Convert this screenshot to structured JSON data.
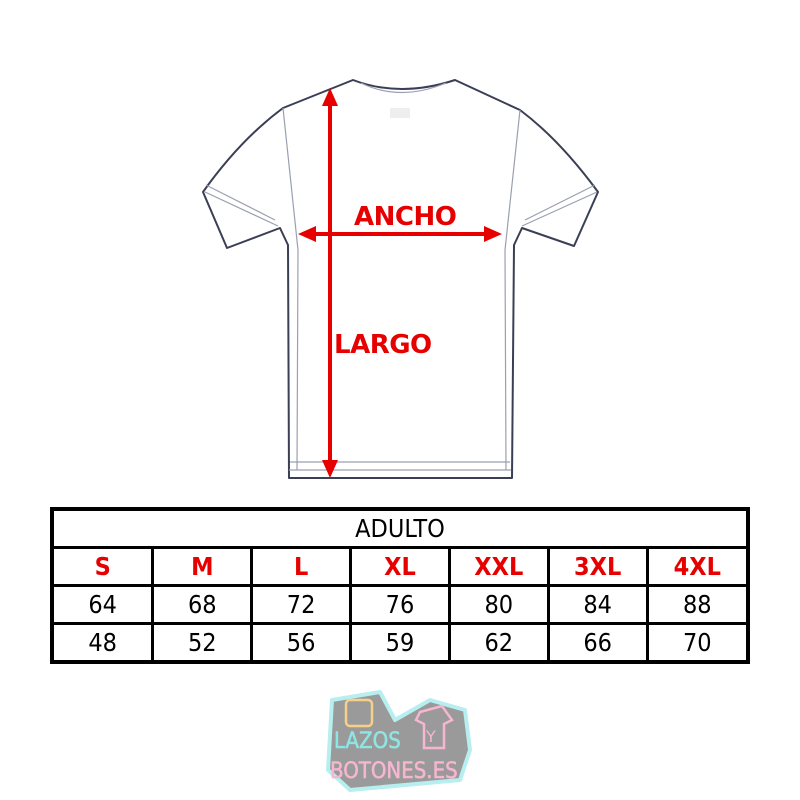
{
  "labels": {
    "width": "ANCHO",
    "length": "LARGO"
  },
  "table": {
    "title": "ADULTO",
    "sizes": [
      "S",
      "M",
      "L",
      "XL",
      "XXL",
      "3XL",
      "4XL"
    ],
    "rows": [
      [
        "64",
        "68",
        "72",
        "76",
        "80",
        "84",
        "88"
      ],
      [
        "48",
        "52",
        "56",
        "59",
        "62",
        "66",
        "70"
      ]
    ]
  },
  "logo": {
    "text": "LAZOS Y BOTONES.ES"
  },
  "colors": {
    "accent": "#e60000"
  }
}
